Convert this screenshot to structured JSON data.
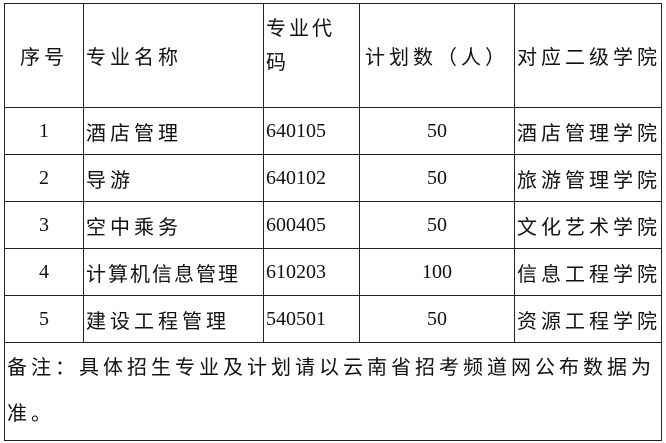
{
  "table": {
    "headers": [
      "序号",
      "专业名称",
      "专业代码",
      "计划数（人）",
      "对应二级学院"
    ],
    "rows": [
      {
        "no": "1",
        "name": "酒店管理",
        "code": "640105",
        "plan": "50",
        "college": "酒店管理学院"
      },
      {
        "no": "2",
        "name": "导游",
        "code": "640102",
        "plan": "50",
        "college": "旅游管理学院"
      },
      {
        "no": "3",
        "name": "空中乘务",
        "code": "600405",
        "plan": "50",
        "college": "文化艺术学院"
      },
      {
        "no": "4",
        "name": "计算机信息管理",
        "code": "610203",
        "plan": "100",
        "college": "信息工程学院"
      },
      {
        "no": "5",
        "name": "建设工程管理",
        "code": "540501",
        "plan": "50",
        "college": "资源工程学院"
      }
    ],
    "note": "备注：具体招生专业及计划请以云南省招考频道网公布数据为准。"
  }
}
